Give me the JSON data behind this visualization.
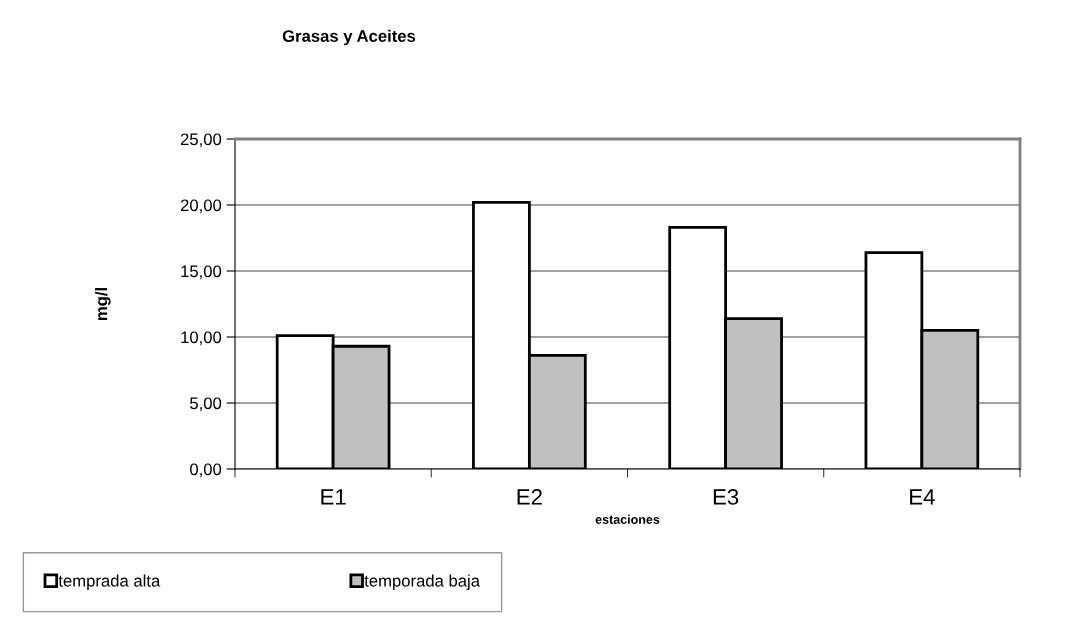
{
  "chart_data": {
    "type": "bar",
    "title": "Grasas y Aceites",
    "xlabel": "estaciones",
    "ylabel": "mg/l",
    "categories": [
      "E1",
      "E2",
      "E3",
      "E4"
    ],
    "series": [
      {
        "name": "temprada alta",
        "color": "#ffffff",
        "values": [
          10.1,
          20.2,
          18.3,
          16.4
        ]
      },
      {
        "name": "temporada baja",
        "color": "#c0c0c0",
        "values": [
          9.3,
          8.6,
          11.4,
          10.5
        ]
      }
    ],
    "ylim": [
      0,
      25
    ],
    "yticks": [
      {
        "value": 0,
        "label": "0,00"
      },
      {
        "value": 5,
        "label": "5,00"
      },
      {
        "value": 10,
        "label": "10,00"
      },
      {
        "value": 15,
        "label": "15,00"
      },
      {
        "value": 20,
        "label": "20,00"
      },
      {
        "value": 25,
        "label": "25,00"
      }
    ],
    "grid": "y",
    "legend": "bottom left"
  }
}
